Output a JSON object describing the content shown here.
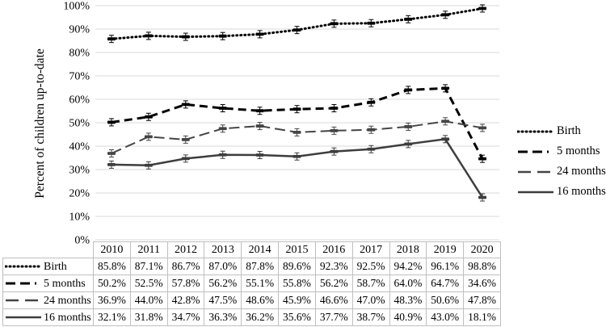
{
  "chart_data": {
    "type": "line",
    "title": "",
    "ylabel": "Percent of children up-to-date",
    "xlabel": "",
    "ylim": [
      0,
      100
    ],
    "ytick_step": 10,
    "ytick_suffix": "%",
    "value_suffix": "%",
    "grid": true,
    "error_bars": true,
    "legend_position": "right",
    "data_table_below": true,
    "categories": [
      "2010",
      "2011",
      "2012",
      "2013",
      "2014",
      "2015",
      "2016",
      "2017",
      "2018",
      "2019",
      "2020"
    ],
    "series": [
      {
        "name": "Birth",
        "line_style": "dotted",
        "color": "#000000",
        "values": [
          85.8,
          87.1,
          86.7,
          87.0,
          87.8,
          89.6,
          92.3,
          92.5,
          94.2,
          96.1,
          98.8
        ]
      },
      {
        "name": "5 months",
        "line_style": "dash",
        "color": "#000000",
        "values": [
          50.2,
          52.5,
          57.8,
          56.2,
          55.1,
          55.8,
          56.2,
          58.7,
          64.0,
          64.7,
          34.6
        ]
      },
      {
        "name": "24 months",
        "line_style": "long-dash",
        "color": "#454545",
        "values": [
          36.9,
          44.0,
          42.8,
          47.5,
          48.6,
          45.9,
          46.6,
          47.0,
          48.3,
          50.6,
          47.8
        ]
      },
      {
        "name": "16 months",
        "line_style": "solid",
        "color": "#3d3d3d",
        "values": [
          32.1,
          31.8,
          34.7,
          36.3,
          36.2,
          35.6,
          37.7,
          38.7,
          40.9,
          43.0,
          18.1
        ]
      }
    ],
    "colors": {
      "gridline": "#d9d9d9",
      "table_border": "#bfbfbf",
      "text": "#000000"
    }
  }
}
